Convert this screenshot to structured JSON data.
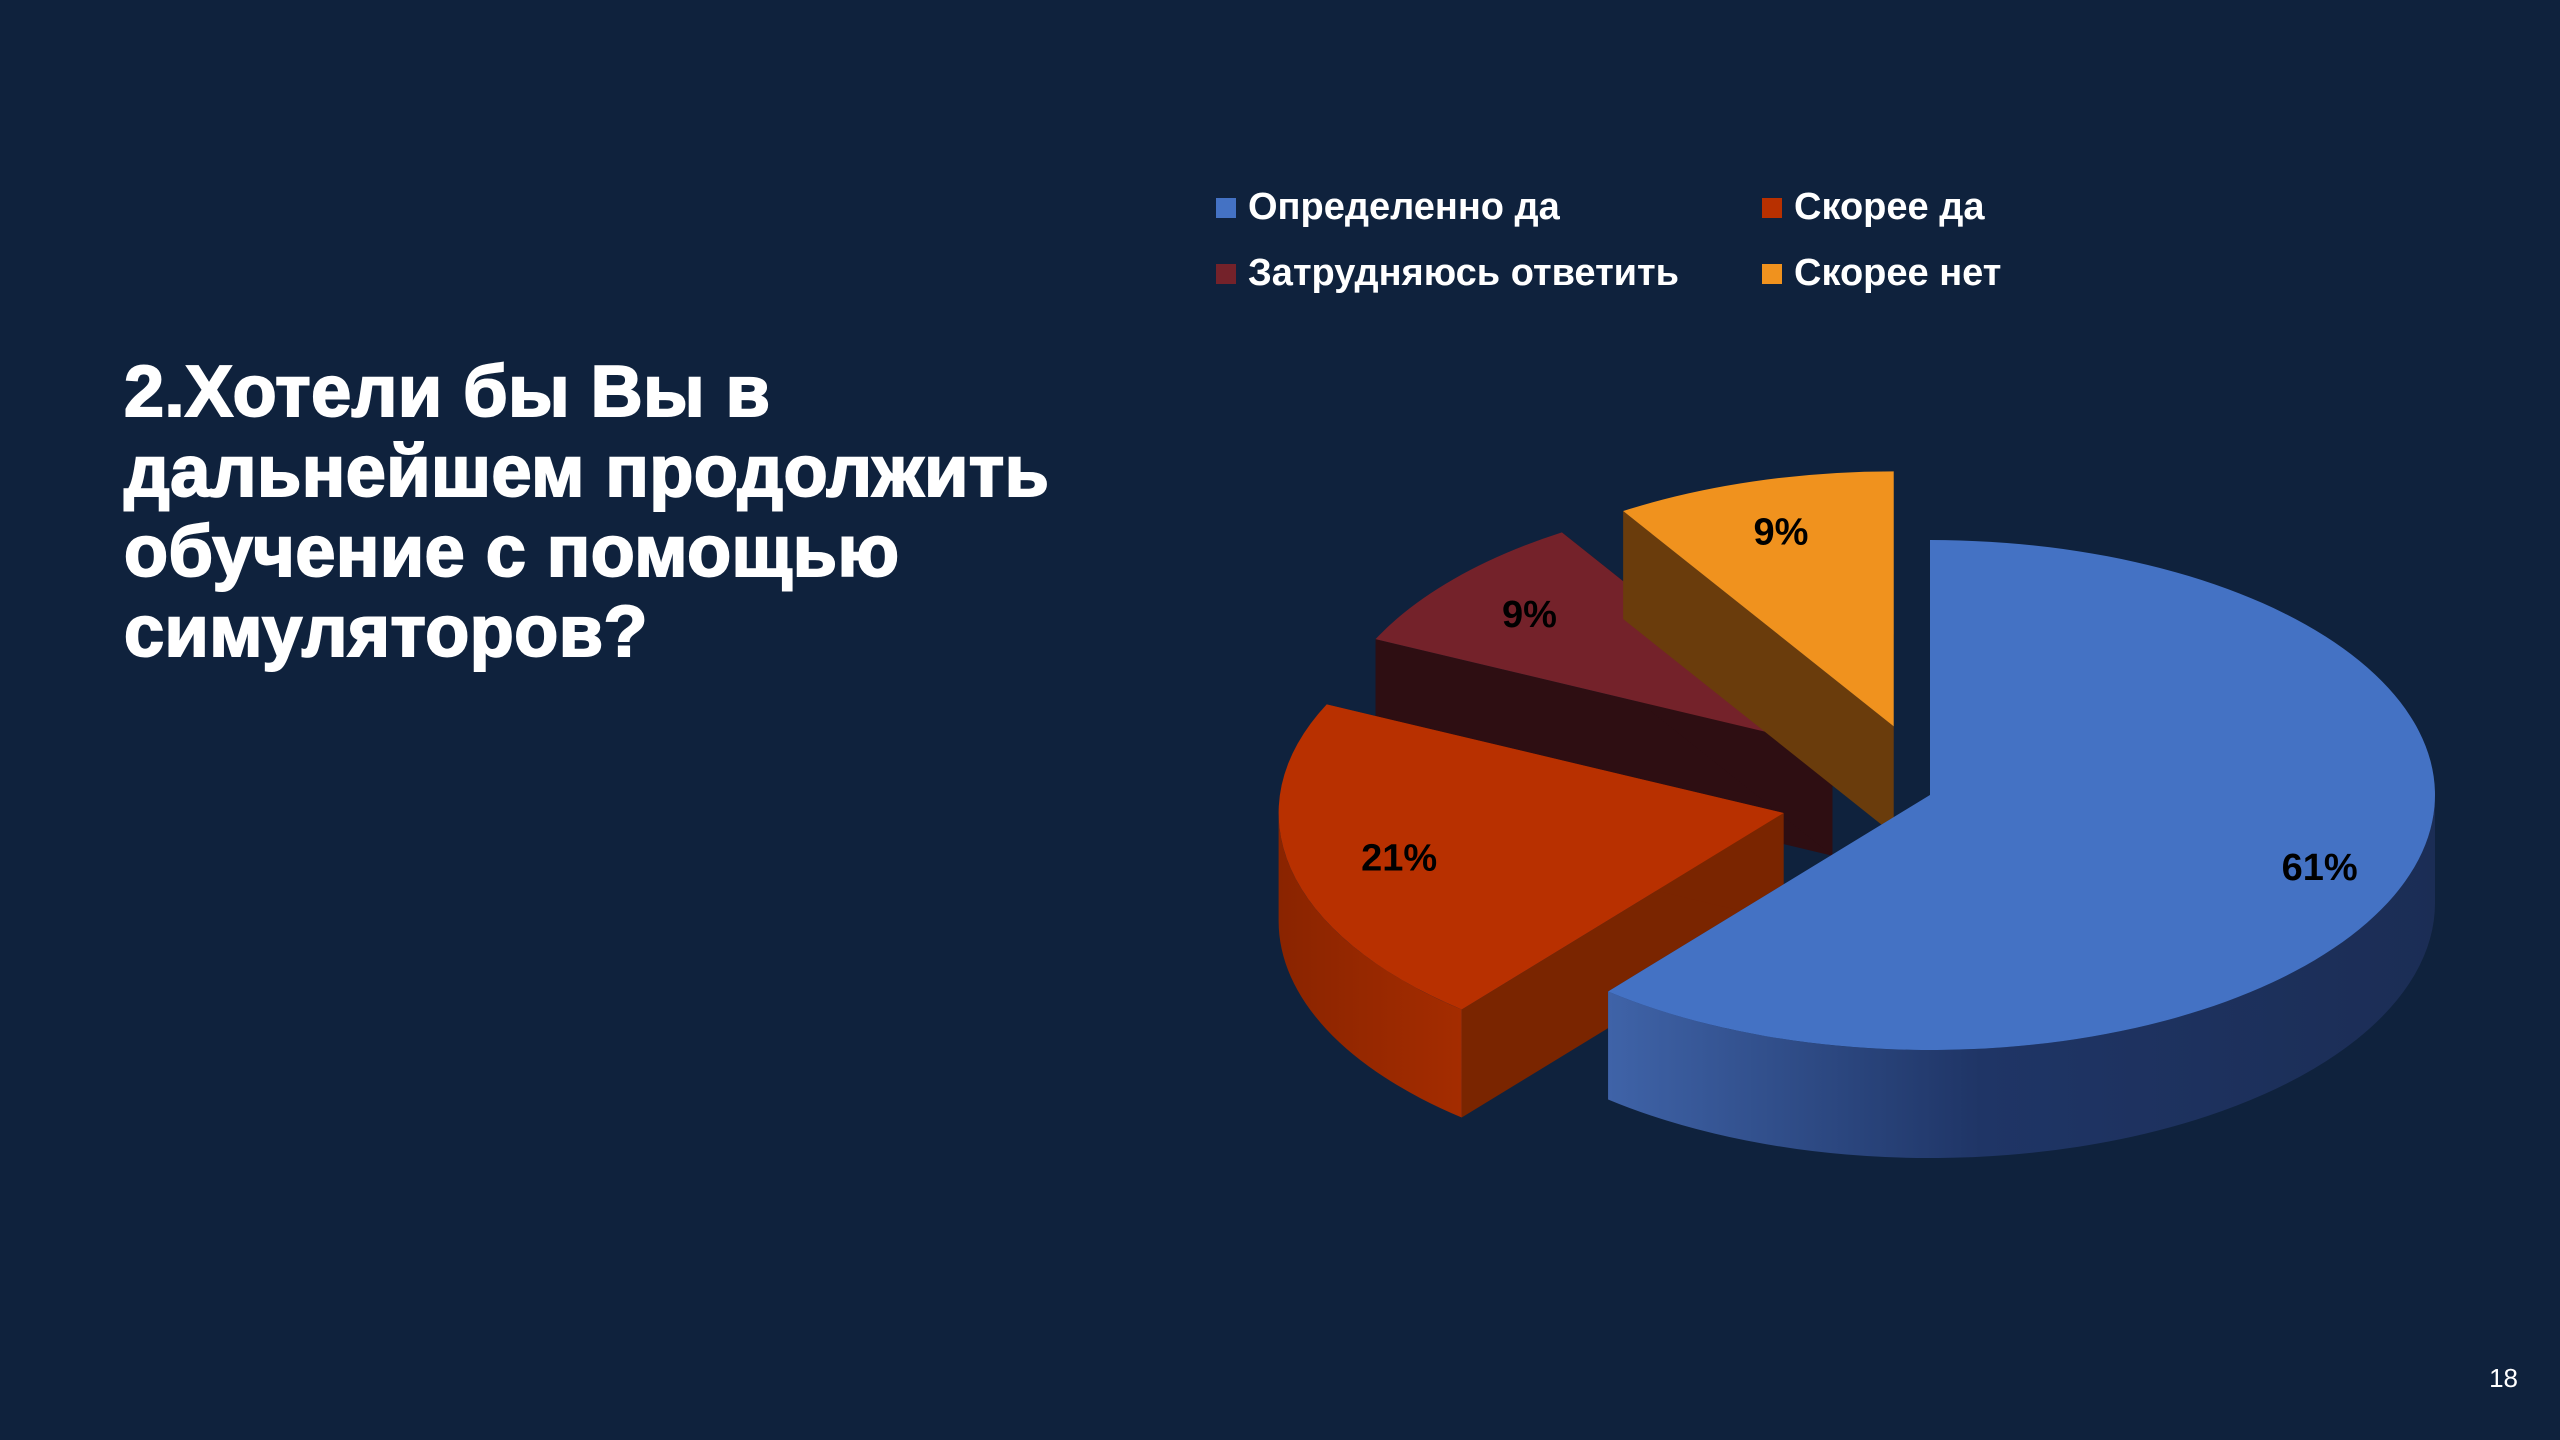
{
  "slide": {
    "title": "2.Хотели бы Вы в дальнейшем продолжить обучение с помощью симуляторов?",
    "page_number": "18"
  },
  "chart_data": {
    "type": "pie",
    "categories": [
      "Определенно да",
      "Скорее да",
      "Затрудняюсь ответить",
      "Скорее нет"
    ],
    "values": [
      61,
      21,
      9,
      9
    ],
    "data_labels": [
      "61%",
      "21%",
      "9%",
      "9%"
    ],
    "colors": [
      "#4472c4",
      "#b83000",
      "#74222a",
      "#f0921e"
    ],
    "legend_position": "top",
    "exploded": true,
    "three_d": true
  }
}
